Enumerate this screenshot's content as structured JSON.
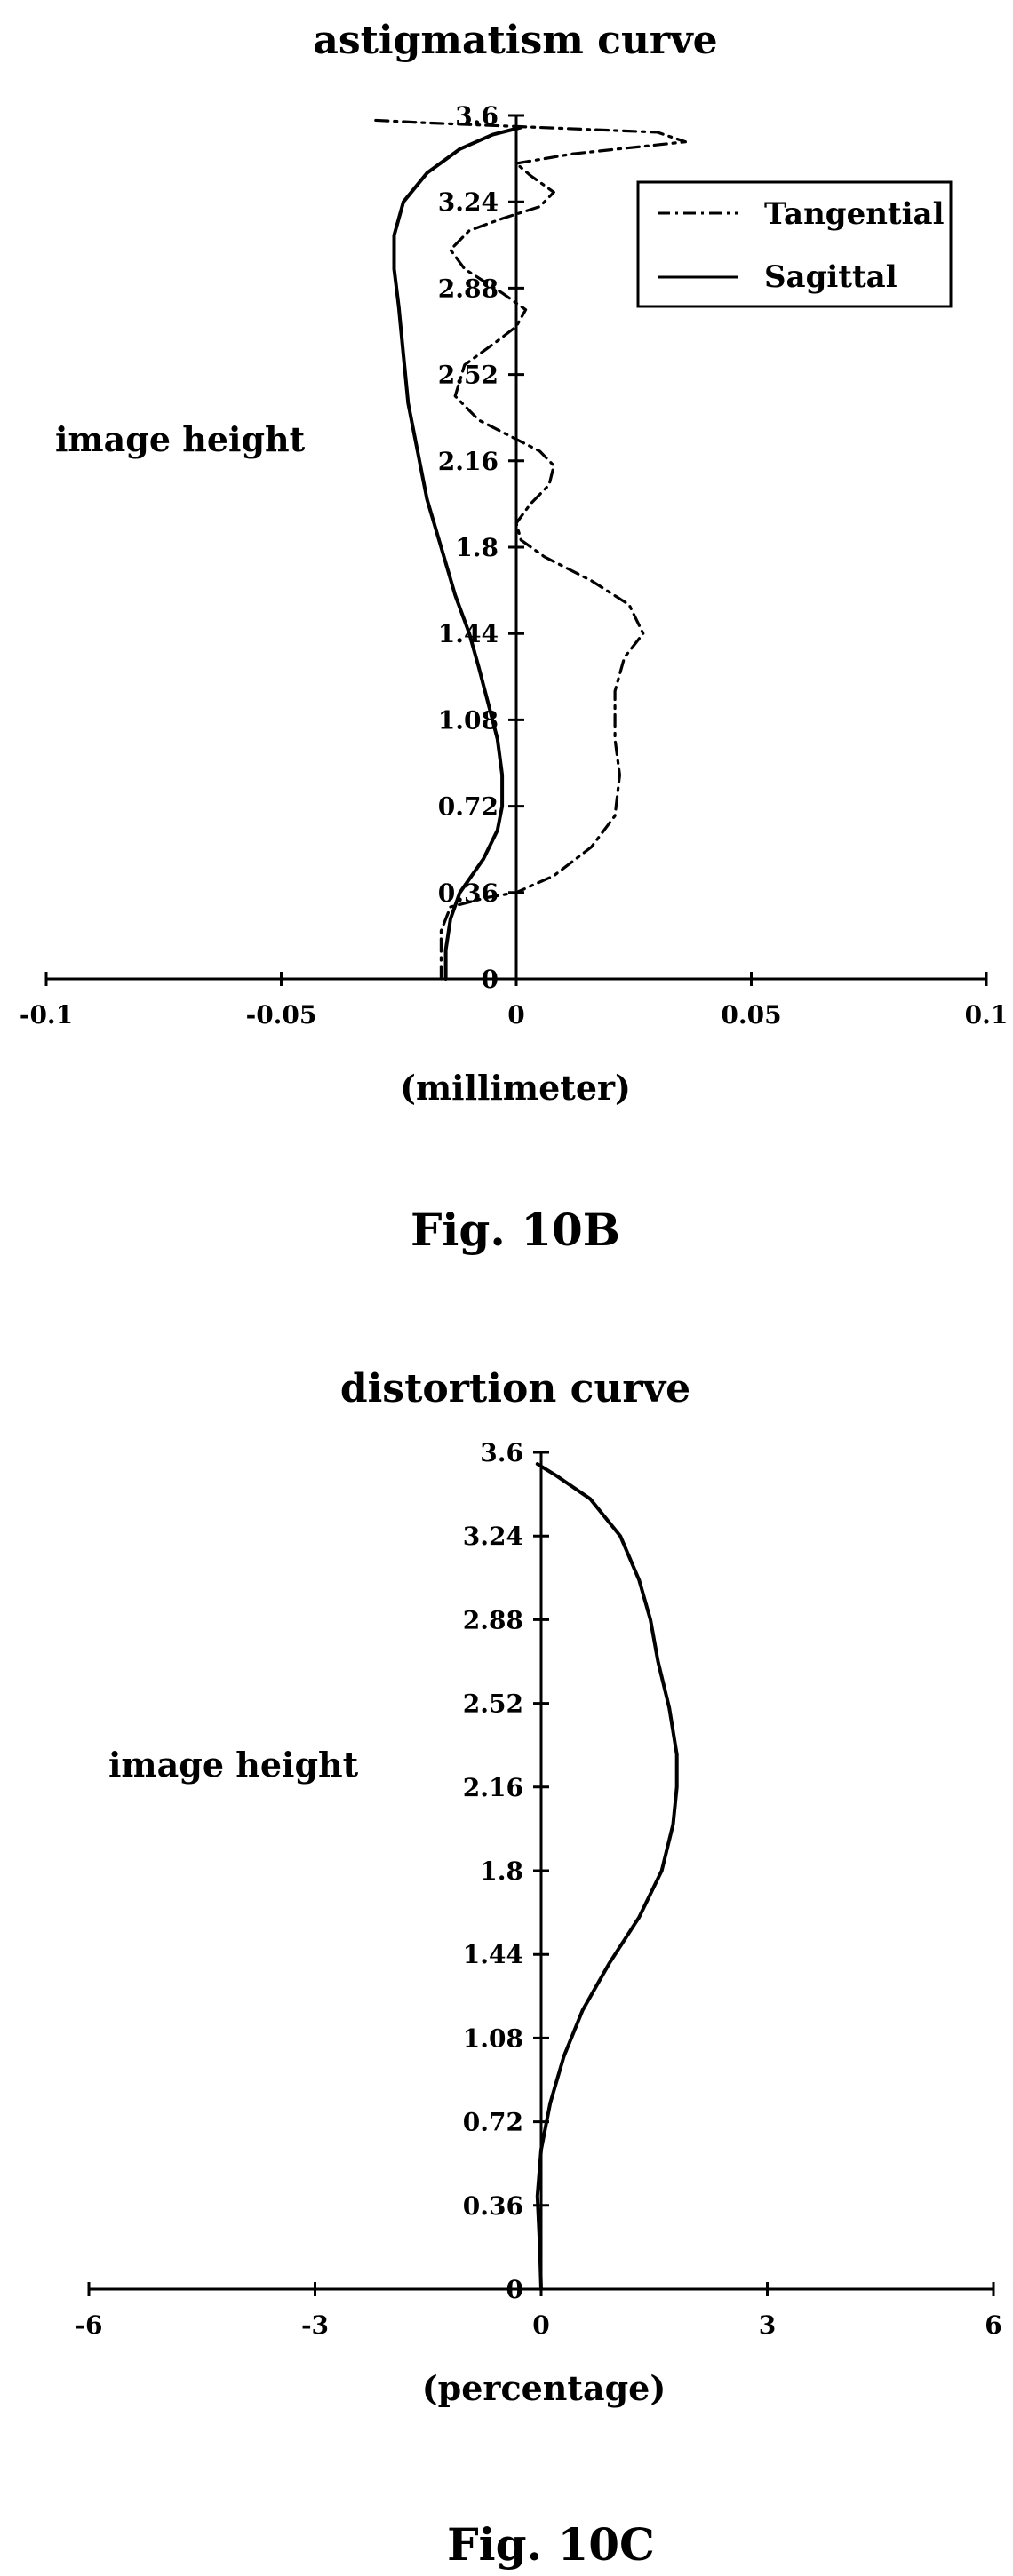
{
  "chart_data": [
    {
      "type": "line",
      "title": "astigmatism curve",
      "xlabel": "(millimeter)",
      "ylabel": "image height",
      "caption": "Fig. 10B",
      "xlim": [
        -0.1,
        0.1
      ],
      "ylim": [
        0,
        3.6
      ],
      "x_ticks": [
        "-0.1",
        "-0.05",
        "0",
        "0.05",
        "0.1"
      ],
      "y_ticks": [
        "0",
        "0.36",
        "0.72",
        "1.08",
        "1.44",
        "1.8",
        "2.16",
        "2.52",
        "2.88",
        "3.24",
        "3.6"
      ],
      "grid": false,
      "legend": "top-right",
      "series": [
        {
          "name": "Tangential",
          "style": "dash-dot",
          "points": [
            [
              -0.016,
              0.0
            ],
            [
              -0.016,
              0.2
            ],
            [
              -0.014,
              0.3
            ],
            [
              -0.006,
              0.34
            ],
            [
              0.0,
              0.36
            ],
            [
              0.008,
              0.43
            ],
            [
              0.016,
              0.55
            ],
            [
              0.021,
              0.68
            ],
            [
              0.022,
              0.85
            ],
            [
              0.021,
              1.0
            ],
            [
              0.021,
              1.2
            ],
            [
              0.023,
              1.34
            ],
            [
              0.027,
              1.44
            ],
            [
              0.024,
              1.56
            ],
            [
              0.016,
              1.66
            ],
            [
              0.006,
              1.76
            ],
            [
              0.001,
              1.83
            ],
            [
              0.0,
              1.9
            ],
            [
              0.003,
              1.98
            ],
            [
              0.007,
              2.06
            ],
            [
              0.008,
              2.14
            ],
            [
              0.005,
              2.2
            ],
            [
              0.0,
              2.25
            ],
            [
              -0.008,
              2.33
            ],
            [
              -0.013,
              2.43
            ],
            [
              -0.011,
              2.56
            ],
            [
              -0.004,
              2.66
            ],
            [
              0.0,
              2.72
            ],
            [
              0.002,
              2.79
            ],
            [
              -0.003,
              2.86
            ],
            [
              -0.011,
              2.96
            ],
            [
              -0.014,
              3.04
            ],
            [
              -0.01,
              3.12
            ],
            [
              -0.003,
              3.17
            ],
            [
              0.005,
              3.22
            ],
            [
              0.008,
              3.28
            ],
            [
              0.003,
              3.35
            ],
            [
              0.0,
              3.4
            ],
            [
              0.012,
              3.44
            ],
            [
              0.036,
              3.49
            ],
            [
              0.03,
              3.53
            ],
            [
              0.005,
              3.55
            ],
            [
              -0.02,
              3.57
            ],
            [
              -0.03,
              3.58
            ]
          ]
        },
        {
          "name": "Sagittal",
          "style": "solid",
          "points": [
            [
              -0.015,
              0.0
            ],
            [
              -0.015,
              0.12
            ],
            [
              -0.014,
              0.25
            ],
            [
              -0.012,
              0.36
            ],
            [
              -0.007,
              0.5
            ],
            [
              -0.004,
              0.62
            ],
            [
              -0.003,
              0.72
            ],
            [
              -0.003,
              0.85
            ],
            [
              -0.004,
              1.0
            ],
            [
              -0.006,
              1.15
            ],
            [
              -0.008,
              1.3
            ],
            [
              -0.01,
              1.44
            ],
            [
              -0.013,
              1.6
            ],
            [
              -0.016,
              1.8
            ],
            [
              -0.019,
              2.0
            ],
            [
              -0.021,
              2.2
            ],
            [
              -0.023,
              2.4
            ],
            [
              -0.024,
              2.6
            ],
            [
              -0.025,
              2.8
            ],
            [
              -0.026,
              2.96
            ],
            [
              -0.026,
              3.1
            ],
            [
              -0.024,
              3.24
            ],
            [
              -0.019,
              3.36
            ],
            [
              -0.012,
              3.46
            ],
            [
              -0.005,
              3.52
            ],
            [
              0.001,
              3.55
            ]
          ]
        }
      ]
    },
    {
      "type": "line",
      "title": "distortion curve",
      "xlabel": "(percentage)",
      "ylabel": "image height",
      "caption": "Fig. 10C",
      "xlim": [
        -6,
        6
      ],
      "ylim": [
        0,
        3.6
      ],
      "x_ticks": [
        "-6",
        "-3",
        "0",
        "3",
        "6"
      ],
      "y_ticks": [
        "0",
        "0.36",
        "0.72",
        "1.08",
        "1.44",
        "1.8",
        "2.16",
        "2.52",
        "2.88",
        "3.24",
        "3.6"
      ],
      "grid": false,
      "series": [
        {
          "style": "solid",
          "points": [
            [
              0.0,
              0.0
            ],
            [
              -0.02,
              0.2
            ],
            [
              -0.05,
              0.4
            ],
            [
              0.0,
              0.6
            ],
            [
              0.12,
              0.8
            ],
            [
              0.3,
              1.0
            ],
            [
              0.55,
              1.2
            ],
            [
              0.9,
              1.4
            ],
            [
              1.3,
              1.6
            ],
            [
              1.6,
              1.8
            ],
            [
              1.75,
              2.0
            ],
            [
              1.8,
              2.16
            ],
            [
              1.8,
              2.3
            ],
            [
              1.7,
              2.5
            ],
            [
              1.55,
              2.7
            ],
            [
              1.45,
              2.88
            ],
            [
              1.3,
              3.05
            ],
            [
              1.05,
              3.24
            ],
            [
              0.65,
              3.4
            ],
            [
              0.2,
              3.5
            ],
            [
              -0.05,
              3.55
            ]
          ]
        }
      ]
    }
  ]
}
